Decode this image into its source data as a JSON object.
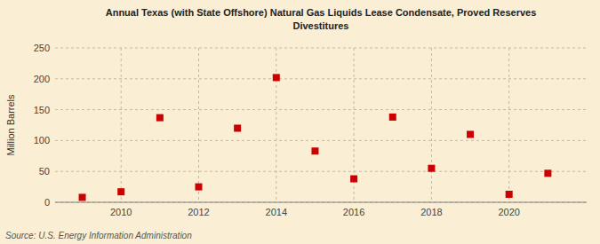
{
  "chart_data": {
    "type": "scatter",
    "title": "Annual Texas (with State Offshore) Natural Gas Liquids Lease Condensate, Proved Reserves\nDivestitures",
    "ylabel": "Million Barrels",
    "source": "Source: U.S. Energy Information Administration",
    "x": [
      2009,
      2010,
      2011,
      2012,
      2013,
      2014,
      2015,
      2016,
      2017,
      2018,
      2019,
      2020,
      2021
    ],
    "values": [
      8,
      17,
      137,
      25,
      120,
      202,
      83,
      38,
      138,
      55,
      110,
      13,
      47
    ],
    "color": "#cc0000",
    "marker": "square",
    "xlim": [
      2008.3,
      2022.0
    ],
    "xticks": [
      2010,
      2012,
      2014,
      2016,
      2018,
      2020
    ],
    "ylim": [
      0,
      250
    ],
    "yticks": [
      0,
      50,
      100,
      150,
      200,
      250
    ],
    "grid": true
  }
}
